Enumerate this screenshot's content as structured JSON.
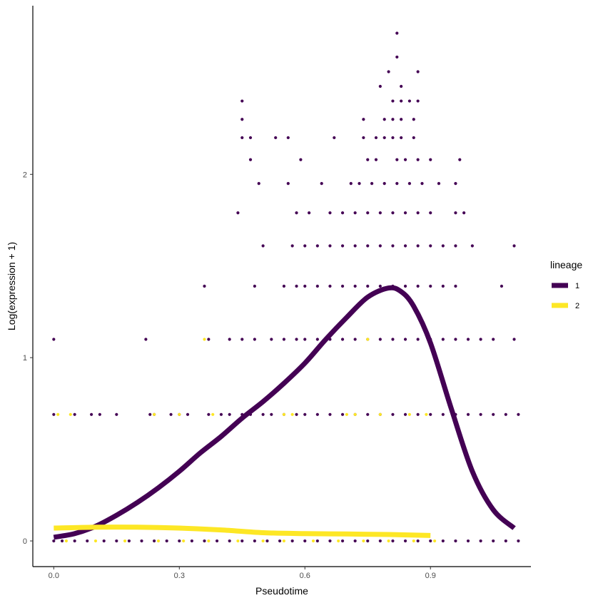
{
  "chart_data": {
    "type": "scatter",
    "xlabel": "Pseudotime",
    "ylabel": "Log(expression + 1)",
    "xlim": [
      -0.05,
      1.14
    ],
    "ylim": [
      -0.14,
      2.92
    ],
    "xticks": [
      0.0,
      0.3,
      0.6,
      0.9
    ],
    "xtick_labels": [
      "0.0",
      "0.3",
      "0.6",
      "0.9"
    ],
    "yticks": [
      0,
      1,
      2
    ],
    "ytick_labels": [
      "0",
      "1",
      "2"
    ],
    "grid": false,
    "legend": {
      "title": "lineage",
      "position": "right",
      "entries": [
        {
          "label": "1",
          "color": "#440154"
        },
        {
          "label": "2",
          "color": "#FDE725"
        }
      ]
    },
    "points": [
      {
        "y": 0,
        "lineage": "1",
        "x": [
          0.0,
          0.02,
          0.05,
          0.08,
          0.12,
          0.15,
          0.18,
          0.21,
          0.24,
          0.27,
          0.3,
          0.33,
          0.36,
          0.39,
          0.42,
          0.45,
          0.48,
          0.51,
          0.54,
          0.57,
          0.6,
          0.63,
          0.66,
          0.69,
          0.72,
          0.75,
          0.78,
          0.81,
          0.84,
          0.87,
          0.9,
          0.93,
          0.96,
          0.99,
          1.02,
          1.05,
          1.08,
          1.11
        ]
      },
      {
        "y": 0,
        "lineage": "2",
        "x": [
          0.03,
          0.1,
          0.17,
          0.25,
          0.31,
          0.37,
          0.44,
          0.5,
          0.55,
          0.62,
          0.68,
          0.74,
          0.8,
          0.86,
          0.91
        ]
      },
      {
        "y": 0.69,
        "lineage": "1",
        "x": [
          0.0,
          0.05,
          0.09,
          0.11,
          0.15,
          0.23,
          0.24,
          0.28,
          0.3,
          0.32,
          0.37,
          0.4,
          0.42,
          0.45,
          0.47,
          0.5,
          0.52,
          0.55,
          0.58,
          0.6,
          0.63,
          0.66,
          0.69,
          0.72,
          0.75,
          0.78,
          0.81,
          0.84,
          0.87,
          0.9,
          0.93,
          0.96,
          0.99,
          1.02,
          1.05,
          1.08,
          1.11
        ]
      },
      {
        "y": 0.69,
        "lineage": "2",
        "x": [
          0.01,
          0.04,
          0.24,
          0.3,
          0.38,
          0.55,
          0.57,
          0.7,
          0.72,
          0.78,
          0.85,
          0.89
        ]
      },
      {
        "y": 1.1,
        "lineage": "1",
        "x": [
          0.0,
          0.22,
          0.37,
          0.42,
          0.45,
          0.48,
          0.52,
          0.55,
          0.58,
          0.6,
          0.63,
          0.66,
          0.69,
          0.72,
          0.75,
          0.78,
          0.81,
          0.84,
          0.87,
          0.9,
          0.93,
          0.96,
          0.99,
          1.02,
          1.05,
          1.1
        ]
      },
      {
        "y": 1.1,
        "lineage": "2",
        "x": [
          0.36,
          0.75
        ]
      },
      {
        "y": 1.39,
        "lineage": "1",
        "x": [
          0.36,
          0.48,
          0.55,
          0.58,
          0.6,
          0.63,
          0.66,
          0.69,
          0.72,
          0.75,
          0.78,
          0.81,
          0.84,
          0.87,
          0.9,
          0.93,
          0.96,
          1.07
        ]
      },
      {
        "y": 1.61,
        "lineage": "1",
        "x": [
          0.5,
          0.57,
          0.6,
          0.63,
          0.66,
          0.69,
          0.72,
          0.75,
          0.78,
          0.81,
          0.84,
          0.87,
          0.9,
          0.93,
          0.96,
          1.0,
          1.1
        ]
      },
      {
        "y": 1.79,
        "lineage": "1",
        "x": [
          0.44,
          0.58,
          0.61,
          0.66,
          0.69,
          0.72,
          0.75,
          0.78,
          0.81,
          0.84,
          0.87,
          0.9,
          0.96,
          0.98
        ]
      },
      {
        "y": 1.95,
        "lineage": "1",
        "x": [
          0.49,
          0.56,
          0.64,
          0.71,
          0.73,
          0.76,
          0.79,
          0.82,
          0.85,
          0.88,
          0.92,
          0.96
        ]
      },
      {
        "y": 2.08,
        "lineage": "1",
        "x": [
          0.47,
          0.59,
          0.75,
          0.77,
          0.82,
          0.84,
          0.87,
          0.9,
          0.97
        ]
      },
      {
        "y": 2.2,
        "lineage": "1",
        "x": [
          0.45,
          0.47,
          0.53,
          0.56,
          0.67,
          0.74,
          0.77,
          0.79,
          0.81,
          0.83,
          0.86
        ]
      },
      {
        "y": 2.3,
        "lineage": "1",
        "x": [
          0.45,
          0.74,
          0.79,
          0.81,
          0.83,
          0.86
        ]
      },
      {
        "y": 2.4,
        "lineage": "1",
        "x": [
          0.45,
          0.81,
          0.83,
          0.85,
          0.87
        ]
      },
      {
        "y": 2.48,
        "lineage": "1",
        "x": [
          0.78,
          0.83
        ]
      },
      {
        "y": 2.56,
        "lineage": "1",
        "x": [
          0.8,
          0.87
        ]
      },
      {
        "y": 2.64,
        "lineage": "1",
        "x": [
          0.82
        ]
      },
      {
        "y": 2.77,
        "lineage": "1",
        "x": [
          0.82
        ]
      }
    ],
    "series": [
      {
        "name": "1",
        "color": "#440154",
        "x": [
          0.0,
          0.05,
          0.1,
          0.15,
          0.2,
          0.25,
          0.3,
          0.35,
          0.4,
          0.45,
          0.5,
          0.55,
          0.6,
          0.65,
          0.7,
          0.75,
          0.8,
          0.83,
          0.86,
          0.9,
          0.95,
          1.0,
          1.05,
          1.1
        ],
        "values": [
          0.02,
          0.04,
          0.08,
          0.14,
          0.21,
          0.29,
          0.38,
          0.48,
          0.57,
          0.67,
          0.76,
          0.86,
          0.97,
          1.1,
          1.22,
          1.33,
          1.38,
          1.36,
          1.28,
          1.08,
          0.72,
          0.38,
          0.17,
          0.07
        ]
      },
      {
        "name": "2",
        "color": "#FDE725",
        "x": [
          0.0,
          0.1,
          0.2,
          0.3,
          0.4,
          0.5,
          0.6,
          0.7,
          0.8,
          0.9
        ],
        "values": [
          0.07,
          0.075,
          0.075,
          0.07,
          0.06,
          0.045,
          0.04,
          0.038,
          0.035,
          0.03
        ]
      }
    ]
  }
}
